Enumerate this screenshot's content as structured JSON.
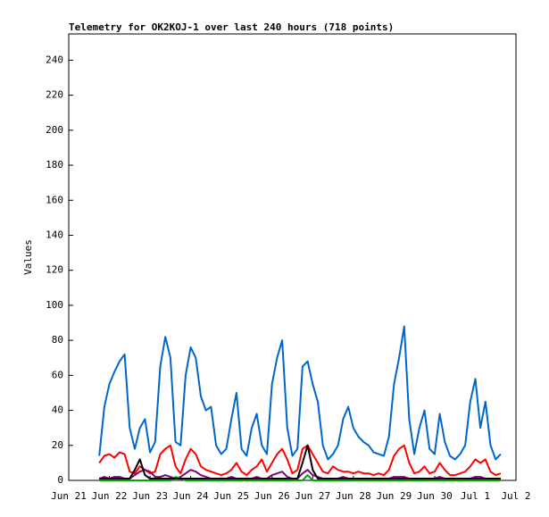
{
  "chart_data": {
    "type": "line",
    "title": "Telemetry for OK2KOJ-1 over last 240 hours (718 points)",
    "y_label": "Values",
    "xlim": [
      0,
      264
    ],
    "xticks": [
      {
        "value": 0,
        "label": "Jun 21"
      },
      {
        "value": 24,
        "label": "Jun 22"
      },
      {
        "value": 48,
        "label": "Jun 23"
      },
      {
        "value": 72,
        "label": "Jun 24"
      },
      {
        "value": 96,
        "label": "Jun 25"
      },
      {
        "value": 120,
        "label": "Jun 26"
      },
      {
        "value": 144,
        "label": "Jun 27"
      },
      {
        "value": 168,
        "label": "Jun 28"
      },
      {
        "value": 192,
        "label": "Jun 29"
      },
      {
        "value": 216,
        "label": "Jun 30"
      },
      {
        "value": 240,
        "label": "Jul 1"
      },
      {
        "value": 264,
        "label": "Jul 2"
      }
    ],
    "ylim": [
      0,
      255
    ],
    "yticks": [
      0,
      20,
      40,
      60,
      80,
      100,
      120,
      140,
      160,
      180,
      200,
      220,
      240
    ],
    "x": [
      18,
      21,
      24,
      27,
      30,
      33,
      36,
      39,
      42,
      45,
      48,
      51,
      54,
      57,
      60,
      63,
      66,
      69,
      72,
      75,
      78,
      81,
      84,
      87,
      90,
      93,
      96,
      99,
      102,
      105,
      108,
      111,
      114,
      117,
      120,
      123,
      126,
      129,
      132,
      135,
      138,
      141,
      144,
      147,
      150,
      153,
      156,
      159,
      162,
      165,
      168,
      171,
      174,
      177,
      180,
      183,
      186,
      189,
      192,
      195,
      198,
      201,
      204,
      207,
      210,
      213,
      216,
      219,
      222,
      225,
      228,
      231,
      234,
      237,
      240,
      243,
      246,
      249,
      252,
      255
    ],
    "series": [
      {
        "color": "#0066cc",
        "values": [
          14,
          42,
          55,
          62,
          68,
          72,
          30,
          18,
          30,
          35,
          16,
          22,
          65,
          82,
          70,
          22,
          20,
          60,
          76,
          70,
          48,
          40,
          42,
          20,
          15,
          18,
          35,
          50,
          18,
          14,
          30,
          38,
          20,
          15,
          55,
          70,
          80,
          30,
          14,
          18,
          65,
          68,
          55,
          45,
          20,
          12,
          15,
          20,
          35,
          42,
          30,
          25,
          22,
          20,
          16,
          15,
          14,
          25,
          55,
          70,
          88,
          35,
          15,
          30,
          40,
          18,
          15,
          38,
          22,
          14,
          12,
          15,
          20,
          45,
          58,
          30,
          45,
          20,
          12,
          15
        ]
      },
      {
        "color": "#ff0000",
        "values": [
          10,
          14,
          15,
          13,
          16,
          15,
          5,
          4,
          8,
          6,
          4,
          5,
          15,
          18,
          20,
          8,
          4,
          12,
          18,
          15,
          8,
          6,
          5,
          4,
          3,
          4,
          6,
          10,
          5,
          3,
          6,
          8,
          12,
          5,
          10,
          15,
          18,
          12,
          4,
          6,
          18,
          20,
          15,
          10,
          5,
          4,
          8,
          6,
          5,
          5,
          4,
          5,
          4,
          4,
          3,
          4,
          3,
          6,
          14,
          18,
          20,
          10,
          4,
          5,
          8,
          4,
          5,
          10,
          6,
          3,
          3,
          4,
          5,
          8,
          12,
          10,
          12,
          5,
          3,
          4
        ]
      },
      {
        "color": "#800080",
        "values": [
          1,
          2,
          1,
          2,
          2,
          1,
          1,
          3,
          5,
          6,
          5,
          2,
          2,
          3,
          2,
          1,
          2,
          4,
          6,
          5,
          3,
          2,
          1,
          1,
          1,
          1,
          2,
          1,
          1,
          1,
          1,
          2,
          1,
          1,
          3,
          4,
          5,
          2,
          1,
          1,
          4,
          6,
          3,
          2,
          1,
          1,
          1,
          1,
          2,
          1,
          1,
          1,
          1,
          1,
          1,
          1,
          1,
          1,
          2,
          2,
          2,
          1,
          1,
          1,
          1,
          1,
          1,
          2,
          1,
          1,
          1,
          1,
          1,
          1,
          2,
          2,
          1,
          1,
          1,
          1
        ]
      },
      {
        "color": "#00aa00",
        "values": [
          0,
          0,
          0,
          0,
          0,
          0,
          0,
          0,
          0,
          0,
          0,
          0,
          0,
          0,
          0,
          2,
          1,
          0,
          0,
          0,
          0,
          0,
          0,
          0,
          0,
          0,
          0,
          0,
          0,
          0,
          0,
          0,
          0,
          0,
          0,
          0,
          0,
          0,
          0,
          0,
          0,
          3,
          0,
          0,
          0,
          0,
          0,
          0,
          0,
          0,
          0,
          0,
          0,
          0,
          0,
          0,
          0,
          0,
          0,
          0,
          0,
          0,
          0,
          0,
          0,
          0,
          0,
          0,
          0,
          0,
          0,
          0,
          0,
          0,
          0,
          0,
          0,
          0,
          0,
          0
        ]
      },
      {
        "color": "#000000",
        "values": [
          1,
          1,
          1,
          1,
          1,
          1,
          1,
          6,
          12,
          3,
          1,
          1,
          1,
          1,
          1,
          1,
          1,
          1,
          1,
          1,
          1,
          1,
          1,
          1,
          1,
          1,
          1,
          1,
          1,
          1,
          1,
          1,
          1,
          1,
          1,
          1,
          1,
          1,
          1,
          1,
          10,
          20,
          6,
          1,
          1,
          1,
          1,
          1,
          1,
          1,
          1,
          1,
          1,
          1,
          1,
          1,
          1,
          1,
          1,
          1,
          1,
          1,
          1,
          1,
          1,
          1,
          1,
          1,
          1,
          1,
          1,
          1,
          1,
          1,
          1,
          1,
          1,
          1,
          1,
          1
        ]
      }
    ]
  }
}
